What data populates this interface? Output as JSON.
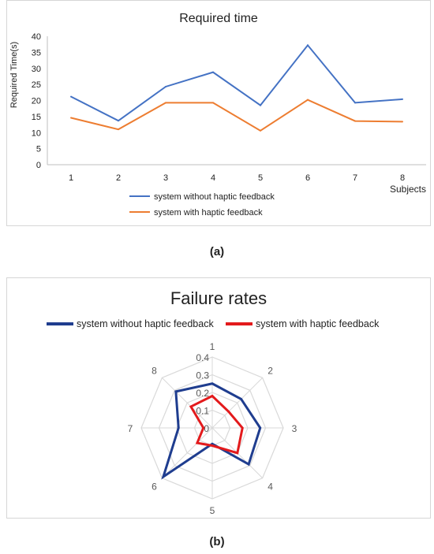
{
  "captions": {
    "a": "(a)",
    "b": "(b)"
  },
  "colors": {
    "series1": "#4472c4",
    "series2": "#ed7d31",
    "radar1": "#1f3d8f",
    "radar2": "#e31a1c",
    "grid": "#d9d9d9",
    "axis": "#7f7f7f"
  },
  "chart_data": [
    {
      "type": "line",
      "title": "Required time",
      "xlabel": "Subjects",
      "ylabel": "Required Time(s)",
      "categories": [
        "1",
        "2",
        "3",
        "4",
        "5",
        "6",
        "7",
        "8"
      ],
      "ylim": [
        0,
        40
      ],
      "yticks": [
        "0",
        "5",
        "10",
        "15",
        "20",
        "25",
        "30",
        "35",
        "40"
      ],
      "grid": false,
      "legend_position": "bottom",
      "series": [
        {
          "name": "system without haptic feedback",
          "values": [
            21.2,
            13.7,
            24.3,
            28.8,
            18.5,
            37.2,
            19.3,
            20.4
          ]
        },
        {
          "name": "system with haptic feedback",
          "values": [
            14.6,
            11.0,
            19.3,
            19.3,
            10.6,
            20.2,
            13.6,
            13.4
          ]
        }
      ]
    },
    {
      "type": "radar",
      "title": "Failure rates",
      "categories": [
        "1",
        "2",
        "3",
        "4",
        "5",
        "6",
        "7",
        "8"
      ],
      "rlim": [
        0,
        0.4
      ],
      "rticks": [
        "0",
        "0.1",
        "0.2",
        "0.3",
        "0.4"
      ],
      "grid": true,
      "legend_position": "top",
      "series": [
        {
          "name": "system without haptic feedback",
          "values": [
            0.25,
            0.23,
            0.27,
            0.29,
            0.09,
            0.39,
            0.19,
            0.29
          ]
        },
        {
          "name": "system with haptic feedback",
          "values": [
            0.18,
            0.13,
            0.17,
            0.2,
            0.1,
            0.12,
            0.05,
            0.17
          ]
        }
      ]
    }
  ]
}
